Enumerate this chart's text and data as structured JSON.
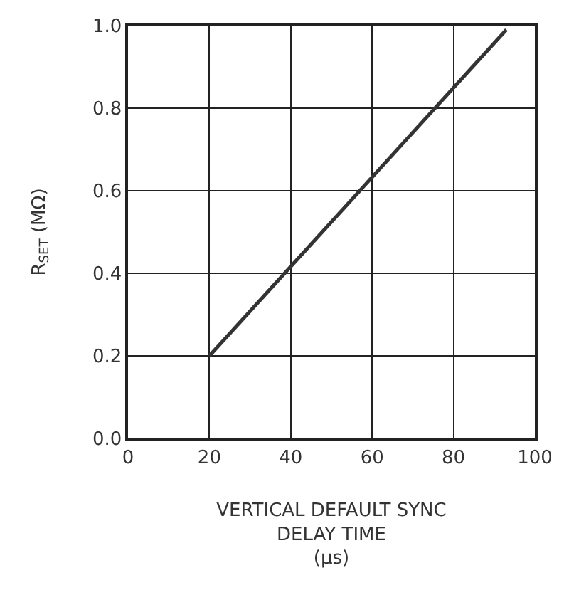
{
  "chart_data": {
    "type": "line",
    "xlabel": "VERTICAL DEFAULT SYNC\nDELAY TIME\n(μs)",
    "ylabel": "R$_{SET}$ (MΩ)",
    "x": [
      20,
      93
    ],
    "series": [
      {
        "color": "#333333",
        "values": [
          0.2,
          0.99
        ]
      }
    ],
    "xlim": [
      0,
      100
    ],
    "xticks": [
      0,
      20,
      40,
      60,
      80,
      100
    ],
    "ylim": [
      0,
      1.0
    ],
    "yticks": [
      {
        "value": 0,
        "label": "0.0"
      },
      0.2,
      0.4,
      0.6,
      0.8,
      {
        "value": 1,
        "label": "1.0"
      }
    ],
    "grid": true,
    "marker": "none",
    "line_style": "solid"
  }
}
